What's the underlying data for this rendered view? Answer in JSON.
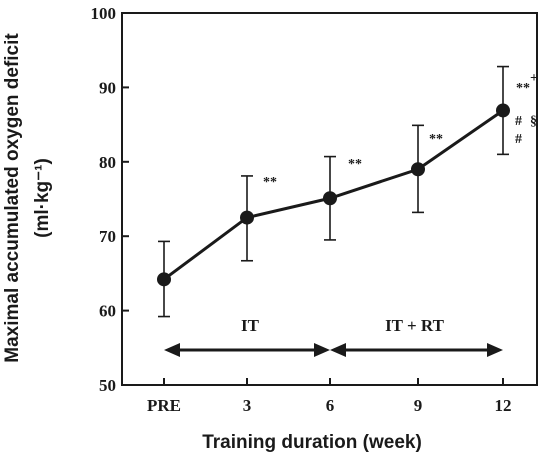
{
  "chart_data": {
    "type": "line",
    "title": "",
    "xlabel": "Training duration (week)",
    "ylabel_line1": "Maximal accumulated oxygen deficit",
    "ylabel_line2": "(ml·kg⁻¹)",
    "categories": [
      "PRE",
      "3",
      "6",
      "9",
      "12"
    ],
    "series": [
      {
        "values": [
          64.2,
          72.5,
          75.1,
          79.0,
          86.9
        ],
        "error_low": [
          59.2,
          66.7,
          69.5,
          73.2,
          81.0
        ],
        "error_high": [
          69.3,
          78.1,
          80.7,
          84.9,
          92.8
        ]
      }
    ],
    "ylim": [
      50,
      100
    ],
    "yticks": [
      50,
      60,
      70,
      80,
      90,
      100
    ],
    "grid": false,
    "phases": [
      {
        "label": "IT",
        "start": "PRE",
        "end": "6"
      },
      {
        "label": "IT + RT",
        "start": "6",
        "end": "12"
      }
    ],
    "annotations": [
      {
        "category": "3",
        "text": "**"
      },
      {
        "category": "6",
        "text": "**"
      },
      {
        "category": "9",
        "text": "**"
      },
      {
        "category": "12",
        "text": "**"
      },
      {
        "category": "12",
        "text": "+"
      },
      {
        "category": "12",
        "text": "#"
      },
      {
        "category": "12",
        "text": "§"
      },
      {
        "category": "12",
        "text": "#"
      }
    ],
    "colors": {
      "line": "#1a1a1a",
      "marker": "#1a1a1a"
    }
  }
}
